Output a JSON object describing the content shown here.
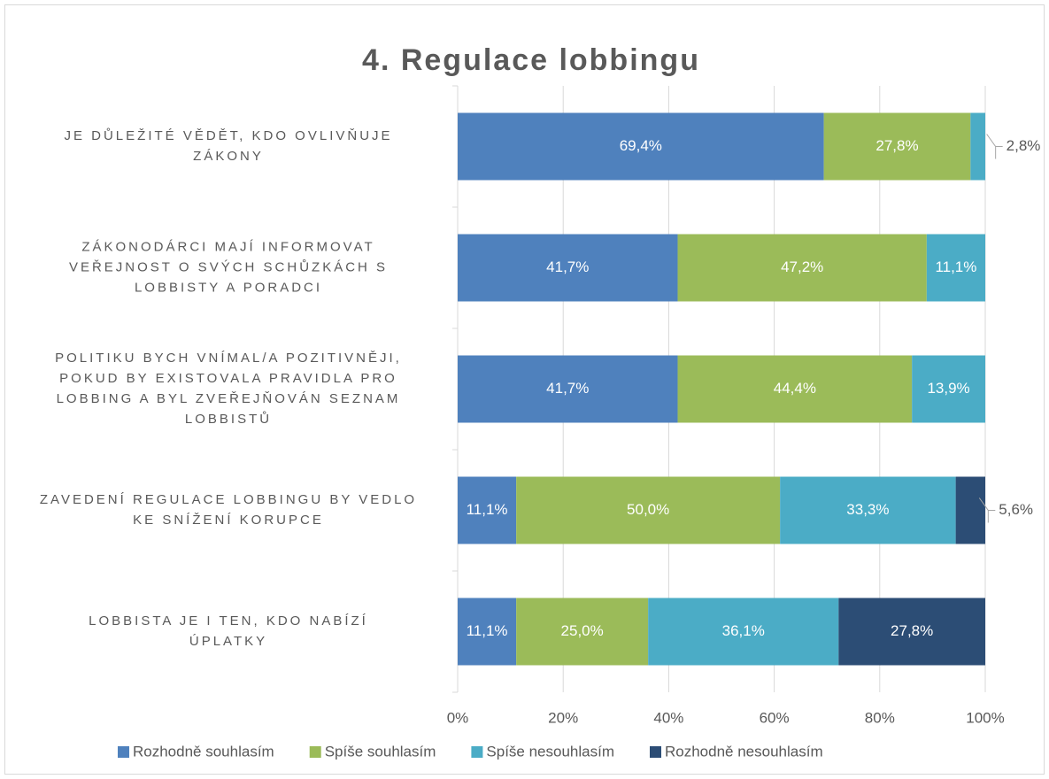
{
  "chart_data": {
    "type": "stacked_bar_horizontal",
    "title": "4. Regulace lobbingu",
    "categories": [
      "JE DŮLEŽITÉ VĚDĚT, KDO OVLIVŇUJE ZÁKONY",
      "ZÁKONODÁRCI MAJÍ INFORMOVAT VEŘEJNOST O SVÝCH SCHŮZKÁCH S LOBBISTY A PORADCI",
      "POLITIKU BYCH VNÍMAL/A POZITIVNĚJI, POKUD BY EXISTOVALA PRAVIDLA PRO LOBBING A BYL ZVEŘEJŇOVÁN SEZNAM LOBBISTŮ",
      "ZAVEDENÍ REGULACE LOBBINGU BY VEDLO KE SNÍŽENÍ KORUPCE",
      "LOBBISTA JE I TEN, KDO NABÍZÍ ÚPLATKY"
    ],
    "series": [
      {
        "name": "Rozhodně souhlasím",
        "color": "#4f81bd",
        "values": [
          69.4,
          41.7,
          41.7,
          11.1,
          11.1
        ],
        "value_labels": [
          "69,4%",
          "41,7%",
          "41,7%",
          "11,1%",
          "11,1%"
        ]
      },
      {
        "name": "Spíše souhlasím",
        "color": "#9bbb59",
        "values": [
          27.8,
          47.2,
          44.4,
          50.0,
          25.0
        ],
        "value_labels": [
          "27,8%",
          "47,2%",
          "44,4%",
          "50,0%",
          "25,0%"
        ]
      },
      {
        "name": "Spíše nesouhlasím",
        "color": "#4bacc6",
        "values": [
          2.8,
          11.1,
          13.9,
          33.3,
          36.1
        ],
        "value_labels": [
          "2,8%",
          "11,1%",
          "13,9%",
          "33,3%",
          "36,1%"
        ]
      },
      {
        "name": "Rozhodně nesouhlasím",
        "color": "#2c4d75",
        "values": [
          null,
          null,
          null,
          5.6,
          27.8
        ],
        "value_labels": [
          null,
          null,
          null,
          "5,6%",
          "27,8%"
        ]
      }
    ],
    "xlim": [
      0,
      100
    ],
    "xticks": [
      {
        "value": 0,
        "label": "0%"
      },
      {
        "value": 20,
        "label": "20%"
      },
      {
        "value": 40,
        "label": "40%"
      },
      {
        "value": 60,
        "label": "60%"
      },
      {
        "value": 80,
        "label": "80%"
      },
      {
        "value": 100,
        "label": "100%"
      }
    ],
    "grid": true,
    "legend": "bottom"
  }
}
